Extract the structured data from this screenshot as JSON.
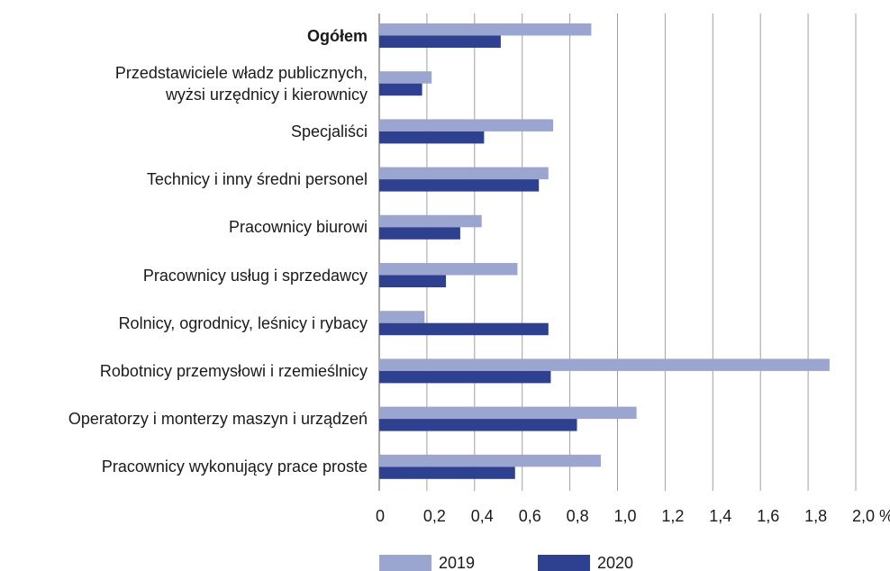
{
  "chart_data": {
    "type": "bar",
    "orientation": "horizontal",
    "categories": [
      "Ogółem",
      "Przedstawiciele władz publicznych,\nwyżsi urzędnicy i kierownicy",
      "Specjaliści",
      "Technicy i inny średni personel",
      "Pracownicy biurowi",
      "Pracownicy usług i sprzedawcy",
      "Rolnicy, ogrodnicy, leśnicy i rybacy",
      "Robotnicy przemysłowi i rzemieślnicy",
      "Operatorzy i monterzy maszyn i urządzeń",
      "Pracownicy wykonujący prace proste"
    ],
    "series": [
      {
        "name": "2019",
        "color": "#9aa6cf",
        "values": [
          0.89,
          0.22,
          0.73,
          0.71,
          0.43,
          0.58,
          0.19,
          1.89,
          1.08,
          0.93
        ]
      },
      {
        "name": "2020",
        "color": "#2e4190",
        "values": [
          0.51,
          0.18,
          0.44,
          0.67,
          0.34,
          0.28,
          0.71,
          0.72,
          0.83,
          0.57
        ]
      }
    ],
    "xlim": [
      0,
      2.0
    ],
    "xticks": [
      0,
      {
        "value": 0.2,
        "label": "0,2"
      },
      {
        "value": 0.4,
        "label": "0,4"
      },
      {
        "value": 0.6,
        "label": "0,6"
      },
      {
        "value": 0.8,
        "label": "0,8"
      },
      {
        "value": 1.0,
        "label": "1,0"
      },
      {
        "value": 1.2,
        "label": "1,2"
      },
      {
        "value": 1.4,
        "label": "1,4"
      },
      {
        "value": 1.6,
        "label": "1,6"
      },
      {
        "value": 1.8,
        "label": "1,8"
      },
      {
        "value": 2.0,
        "label": "2,0 %"
      }
    ],
    "grid": true,
    "legend": "bottom"
  }
}
